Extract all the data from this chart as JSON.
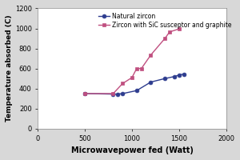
{
  "natural_zircon_x": [
    500,
    800,
    850,
    900,
    1050,
    1200,
    1350,
    1450,
    1500,
    1550
  ],
  "natural_zircon_y": [
    350,
    345,
    345,
    350,
    380,
    465,
    500,
    520,
    535,
    545
  ],
  "sic_graphite_x": [
    500,
    800,
    900,
    1000,
    1050,
    1100,
    1200,
    1350,
    1400,
    1500
  ],
  "sic_graphite_y": [
    350,
    350,
    450,
    510,
    600,
    600,
    735,
    900,
    965,
    995
  ],
  "natural_zircon_color": "#2e3d8f",
  "sic_graphite_color": "#c05080",
  "natural_zircon_label": "Natural zircon",
  "sic_graphite_label": "Zircon with SiC susceptor and graphite",
  "xlabel": "Microwavepower fed (Watt)",
  "ylabel": "Temperature absorbed (C)",
  "xlim": [
    0,
    2000
  ],
  "ylim": [
    0,
    1200
  ],
  "xticks": [
    0,
    500,
    1000,
    1500,
    2000
  ],
  "yticks": [
    0,
    200,
    400,
    600,
    800,
    1000,
    1200
  ],
  "background_color": "#d8d8d8",
  "plot_bg_color": "#ffffff",
  "marker_size": 3.5,
  "line_width": 1.0,
  "xlabel_fontsize": 7.0,
  "ylabel_fontsize": 6.5,
  "tick_fontsize": 6.0,
  "legend_fontsize": 5.5
}
